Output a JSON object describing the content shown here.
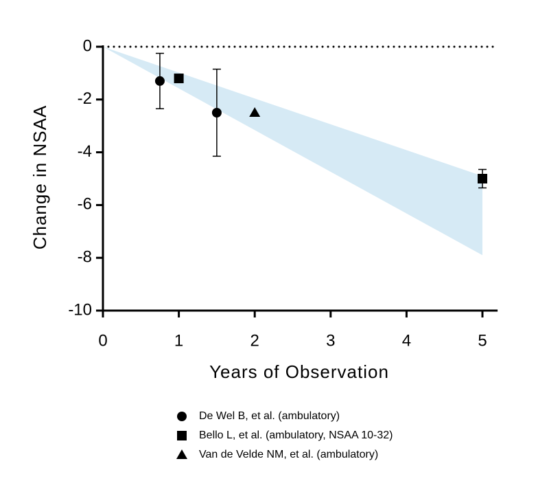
{
  "chart_data": {
    "type": "scatter",
    "xlabel": "Years of Observation",
    "ylabel": "Change in NSAA",
    "xlim": [
      0,
      5.2
    ],
    "xticks": [
      0,
      1,
      2,
      3,
      4,
      5
    ],
    "ylim": [
      -10,
      0
    ],
    "yticks": [
      0,
      -2,
      -4,
      -6,
      -8,
      -10
    ],
    "hline": 0,
    "band": {
      "x": [
        0,
        5
      ],
      "upper": [
        0,
        -4.9
      ],
      "lower": [
        0,
        -7.9
      ],
      "color": "#d6eaf5"
    },
    "series": [
      {
        "name": "De Wel B, et al. (ambulatory)",
        "marker": "circle",
        "color": "#000000",
        "x": [
          0.75,
          1.5
        ],
        "values": [
          -1.3,
          -2.5
        ],
        "errors": [
          1.05,
          1.65
        ]
      },
      {
        "name": "Bello L, et al. (ambulatory, NSAA 10-32)",
        "marker": "square",
        "color": "#000000",
        "x": [
          1,
          5
        ],
        "values": [
          -1.2,
          -5.0
        ],
        "errors": [
          null,
          0.35
        ]
      },
      {
        "name": "Van de Velde NM, et al. (ambulatory)",
        "marker": "triangle",
        "color": "#000000",
        "x": [
          2
        ],
        "values": [
          -2.5
        ],
        "errors": [
          null
        ]
      }
    ]
  }
}
